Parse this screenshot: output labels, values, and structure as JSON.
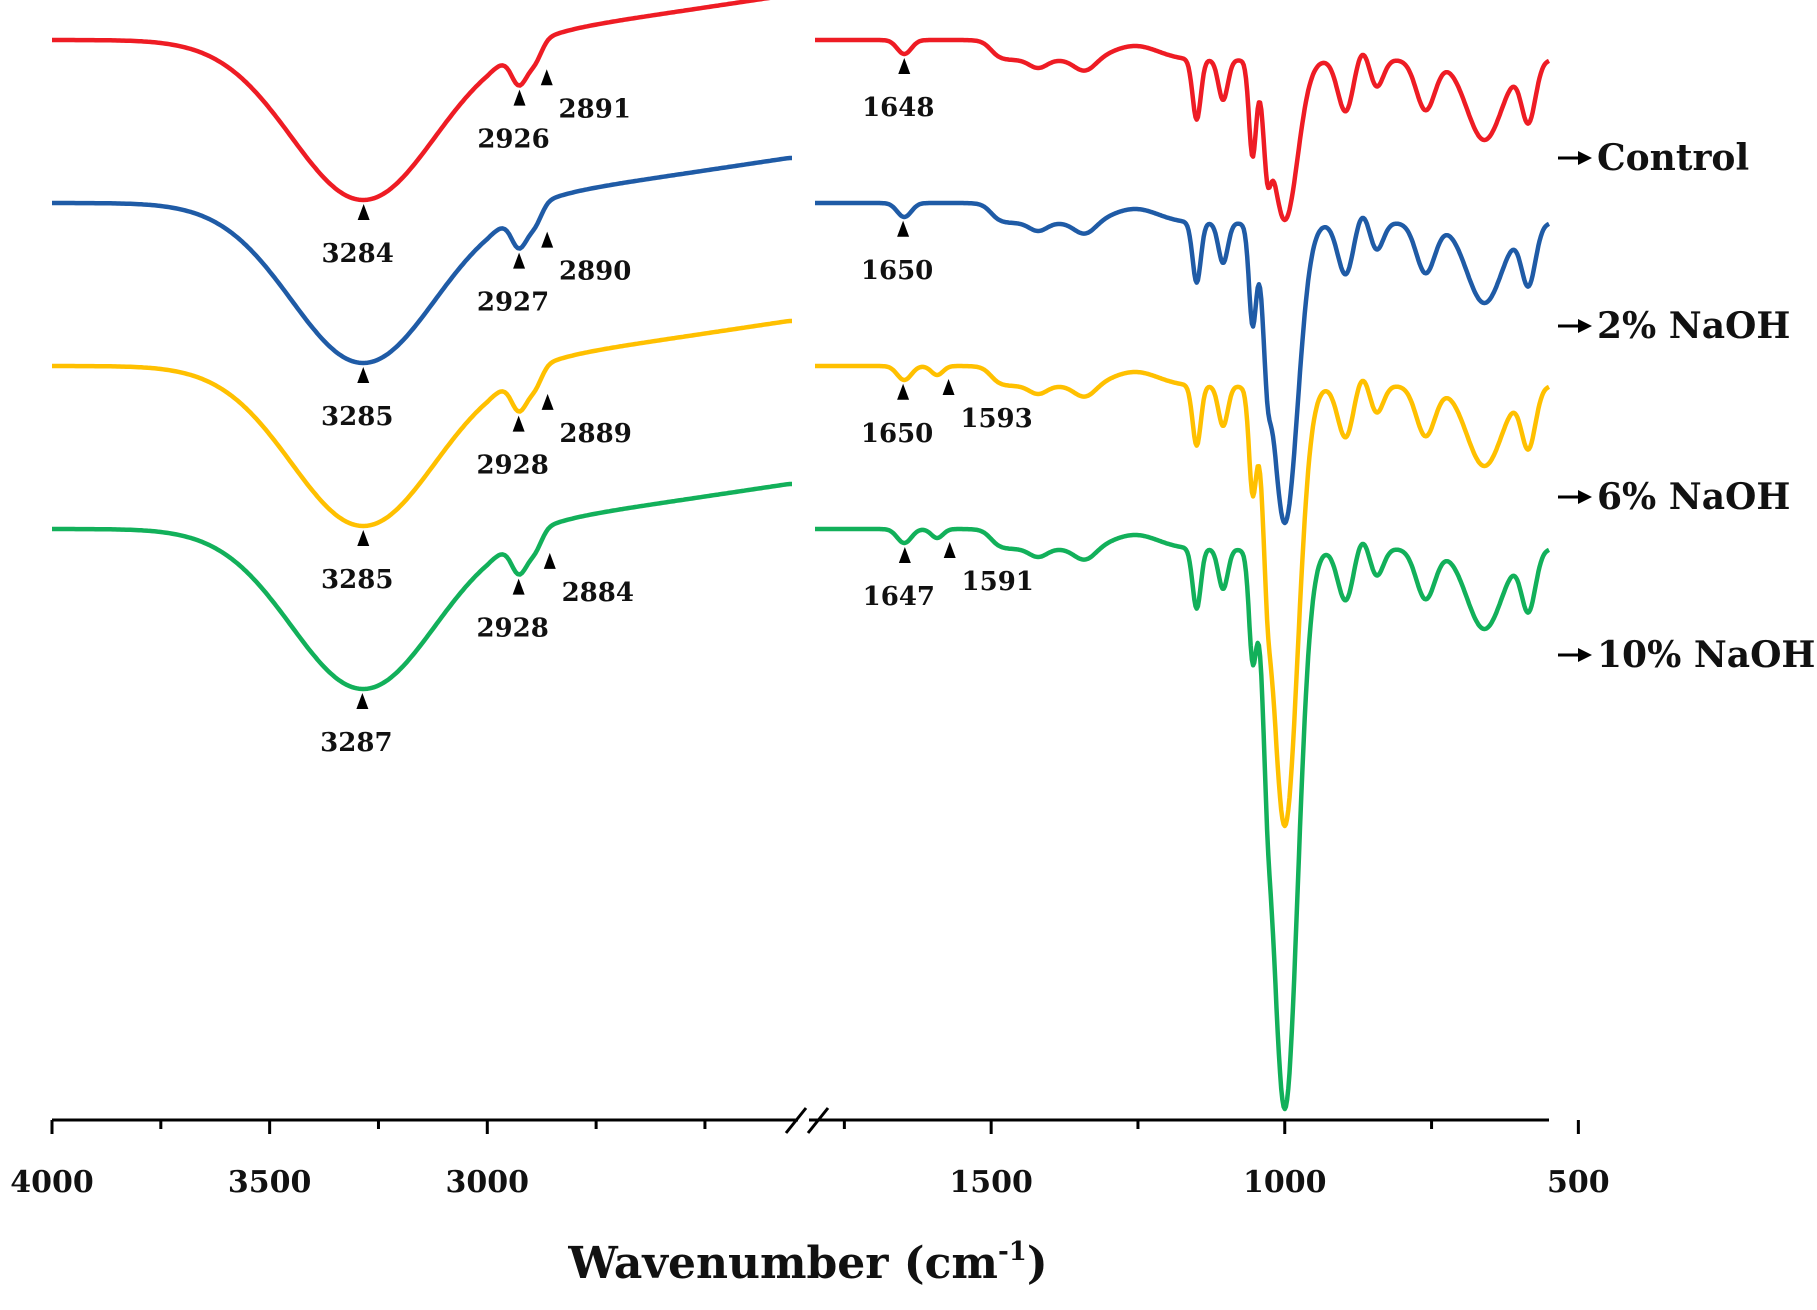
{
  "chart_data": {
    "type": "line",
    "title": "",
    "xlabel": "Wavenumber (cm",
    "xlabel_sup": "-1",
    "xlabel_close": ")",
    "ylabel": "",
    "x_direction": "descending",
    "x_break": [
      2300,
      1800
    ],
    "xlim_left": [
      4000,
      2300
    ],
    "xlim_right": [
      1800,
      550
    ],
    "x_ticks": [
      {
        "value": 4000,
        "label": "4000"
      },
      {
        "value": 3500,
        "label": "3500"
      },
      {
        "value": 3000,
        "label": "3000"
      },
      {
        "value": 1500,
        "label": "1500"
      },
      {
        "value": 1000,
        "label": "1000"
      },
      {
        "value": 500,
        "label": "500"
      }
    ],
    "grid": false,
    "series": [
      {
        "name": "Control",
        "color": "#ee1c24",
        "offset": 0,
        "depth": 1.0,
        "peaks": [
          {
            "x": 3284,
            "label": "3284"
          },
          {
            "x": 2926,
            "label": "2926"
          },
          {
            "x": 2891,
            "label": "2891"
          },
          {
            "x": 1648,
            "label": "1648"
          }
        ]
      },
      {
        "name": "2% NaOH",
        "color": "#1f5ba6",
        "offset": 1,
        "depth": 1.0,
        "peaks": [
          {
            "x": 3285,
            "label": "3285"
          },
          {
            "x": 2927,
            "label": "2927"
          },
          {
            "x": 2890,
            "label": "2890"
          },
          {
            "x": 1650,
            "label": "1650"
          }
        ]
      },
      {
        "name": "6% NaOH",
        "color": "#ffc000",
        "offset": 2,
        "depth": 1.0,
        "peaks": [
          {
            "x": 3285,
            "label": "3285"
          },
          {
            "x": 2928,
            "label": "2928"
          },
          {
            "x": 2889,
            "label": "2889"
          },
          {
            "x": 1650,
            "label": "1650"
          },
          {
            "x": 1593,
            "label": "1593"
          }
        ]
      },
      {
        "name": "10% NaOH",
        "color": "#12b05a",
        "offset": 3,
        "depth": 1.0,
        "peaks": [
          {
            "x": 3287,
            "label": "3287"
          },
          {
            "x": 2928,
            "label": "2928"
          },
          {
            "x": 2884,
            "label": "2884"
          },
          {
            "x": 1647,
            "label": "1647"
          },
          {
            "x": 1591,
            "label": "1591"
          }
        ]
      }
    ]
  }
}
